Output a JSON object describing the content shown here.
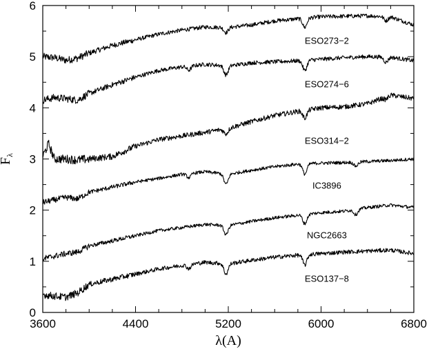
{
  "chart_data": {
    "type": "line",
    "title": "",
    "xlabel": "λ(A)",
    "ylabel": "F",
    "ylabel_subscript": "λ",
    "xlim": [
      3600,
      6800
    ],
    "ylim": [
      0,
      6
    ],
    "xticks": [
      3600,
      4400,
      5200,
      6000,
      6800
    ],
    "yticks": [
      0,
      1,
      2,
      3,
      4,
      5,
      6
    ],
    "grid": false,
    "legend": "none",
    "series": [
      {
        "name": "ESO273−2",
        "x": [
          3600,
          3700,
          3800,
          3900,
          4000,
          4200,
          4400,
          4600,
          4800,
          5000,
          5200,
          5400,
          5600,
          5800,
          6000,
          6200,
          6400,
          6600,
          6800
        ],
        "y": [
          5.0,
          4.98,
          4.93,
          4.97,
          5.07,
          5.22,
          5.33,
          5.44,
          5.52,
          5.58,
          5.57,
          5.62,
          5.7,
          5.74,
          5.78,
          5.79,
          5.8,
          5.78,
          5.62
        ],
        "dips": [
          [
            5860,
            0.18
          ],
          [
            5180,
            0.1
          ],
          [
            6560,
            0.08
          ]
        ],
        "noise": 0.05,
        "label_at": [
          6050,
          5.25
        ]
      },
      {
        "name": "ESO274−6",
        "x": [
          3600,
          3700,
          3800,
          3900,
          4000,
          4200,
          4400,
          4600,
          4800,
          5000,
          5200,
          5400,
          5600,
          5800,
          6000,
          6200,
          6400,
          6600,
          6800
        ],
        "y": [
          4.15,
          4.2,
          4.18,
          4.15,
          4.28,
          4.45,
          4.6,
          4.73,
          4.8,
          4.85,
          4.82,
          4.88,
          4.9,
          4.92,
          4.95,
          4.98,
          5.0,
          4.99,
          4.92
        ],
        "dips": [
          [
            5860,
            0.2
          ],
          [
            5180,
            0.18
          ],
          [
            4860,
            0.08
          ],
          [
            6560,
            0.1
          ]
        ],
        "noise": 0.05,
        "label_at": [
          6050,
          4.4
        ]
      },
      {
        "name": "ESO314−2",
        "x": [
          3600,
          3650,
          3700,
          3800,
          3900,
          4000,
          4200,
          4400,
          4600,
          4800,
          5000,
          5200,
          5400,
          5600,
          5800,
          6000,
          6200,
          6400,
          6600,
          6800
        ],
        "y": [
          3.05,
          3.3,
          3.0,
          3.0,
          2.98,
          3.0,
          3.05,
          3.25,
          3.38,
          3.45,
          3.52,
          3.6,
          3.73,
          3.85,
          3.93,
          4.0,
          4.02,
          4.08,
          4.25,
          4.18
        ],
        "dips": [
          [
            5860,
            0.15
          ],
          [
            5180,
            0.1
          ],
          [
            6560,
            0.05
          ]
        ],
        "noise": 0.06,
        "label_at": [
          6050,
          3.3
        ]
      },
      {
        "name": "IC3896",
        "x": [
          3600,
          3700,
          3800,
          3900,
          4000,
          4200,
          4400,
          4600,
          4800,
          5000,
          5200,
          5400,
          5600,
          5800,
          6000,
          6200,
          6400,
          6600,
          6800
        ],
        "y": [
          2.15,
          2.2,
          2.25,
          2.22,
          2.35,
          2.45,
          2.55,
          2.62,
          2.7,
          2.75,
          2.7,
          2.78,
          2.85,
          2.9,
          2.92,
          2.93,
          2.95,
          2.97,
          3.0
        ],
        "dips": [
          [
            5860,
            0.2
          ],
          [
            5180,
            0.2
          ],
          [
            4860,
            0.08
          ],
          [
            6300,
            0.08
          ]
        ],
        "noise": 0.04,
        "label_at": [
          6050,
          2.42
        ]
      },
      {
        "name": "NGC2663",
        "x": [
          3600,
          3700,
          3800,
          3900,
          4000,
          4200,
          4400,
          4600,
          4800,
          5000,
          5200,
          5400,
          5600,
          5800,
          6000,
          6200,
          6400,
          6600,
          6800
        ],
        "y": [
          1.05,
          1.1,
          1.15,
          1.18,
          1.3,
          1.4,
          1.5,
          1.6,
          1.66,
          1.72,
          1.7,
          1.78,
          1.85,
          1.9,
          1.95,
          1.98,
          2.05,
          2.1,
          2.05
        ],
        "dips": [
          [
            5860,
            0.18
          ],
          [
            5180,
            0.18
          ],
          [
            6300,
            0.1
          ]
        ],
        "noise": 0.04,
        "label_at": [
          6050,
          1.45
        ]
      },
      {
        "name": "ESO137−8",
        "x": [
          3600,
          3700,
          3800,
          3900,
          4000,
          4200,
          4400,
          4600,
          4800,
          5000,
          5200,
          5400,
          5600,
          5800,
          6000,
          6200,
          6400,
          6600,
          6800
        ],
        "y": [
          0.35,
          0.32,
          0.3,
          0.38,
          0.55,
          0.65,
          0.75,
          0.85,
          0.92,
          0.98,
          0.95,
          1.02,
          1.08,
          1.12,
          1.15,
          1.18,
          1.2,
          1.22,
          1.15
        ],
        "dips": [
          [
            5860,
            0.2
          ],
          [
            5180,
            0.2
          ],
          [
            4860,
            0.08
          ]
        ],
        "noise": 0.05,
        "label_at": [
          6050,
          0.6
        ]
      }
    ]
  }
}
